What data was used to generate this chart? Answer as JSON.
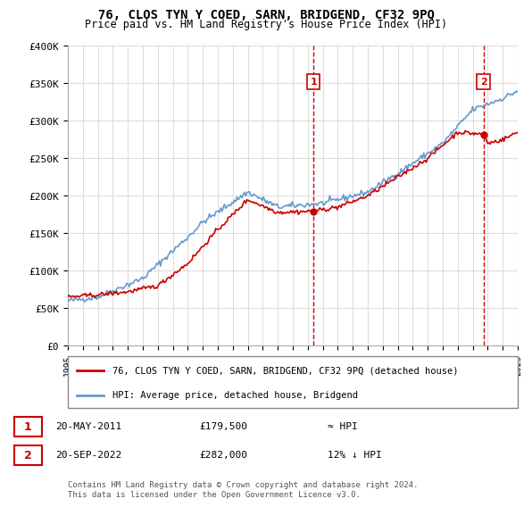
{
  "title": "76, CLOS TYN Y COED, SARN, BRIDGEND, CF32 9PQ",
  "subtitle": "Price paid vs. HM Land Registry's House Price Index (HPI)",
  "ylabel_ticks": [
    "£0",
    "£50K",
    "£100K",
    "£150K",
    "£200K",
    "£250K",
    "£300K",
    "£350K",
    "£400K"
  ],
  "ylim": [
    0,
    400000
  ],
  "xlim_start": 1995,
  "xlim_end": 2025,
  "t1_x": 2011.38,
  "t1_y": 179500,
  "t2_x": 2022.72,
  "t2_y": 282000,
  "line_color_house": "#cc0000",
  "line_color_hpi": "#6699cc",
  "legend_house": "76, CLOS TYN Y COED, SARN, BRIDGEND, CF32 9PQ (detached house)",
  "legend_hpi": "HPI: Average price, detached house, Bridgend",
  "footer": "Contains HM Land Registry data © Crown copyright and database right 2024.\nThis data is licensed under the Open Government Licence v3.0.",
  "background_color": "#ffffff",
  "grid_color": "#dddddd"
}
